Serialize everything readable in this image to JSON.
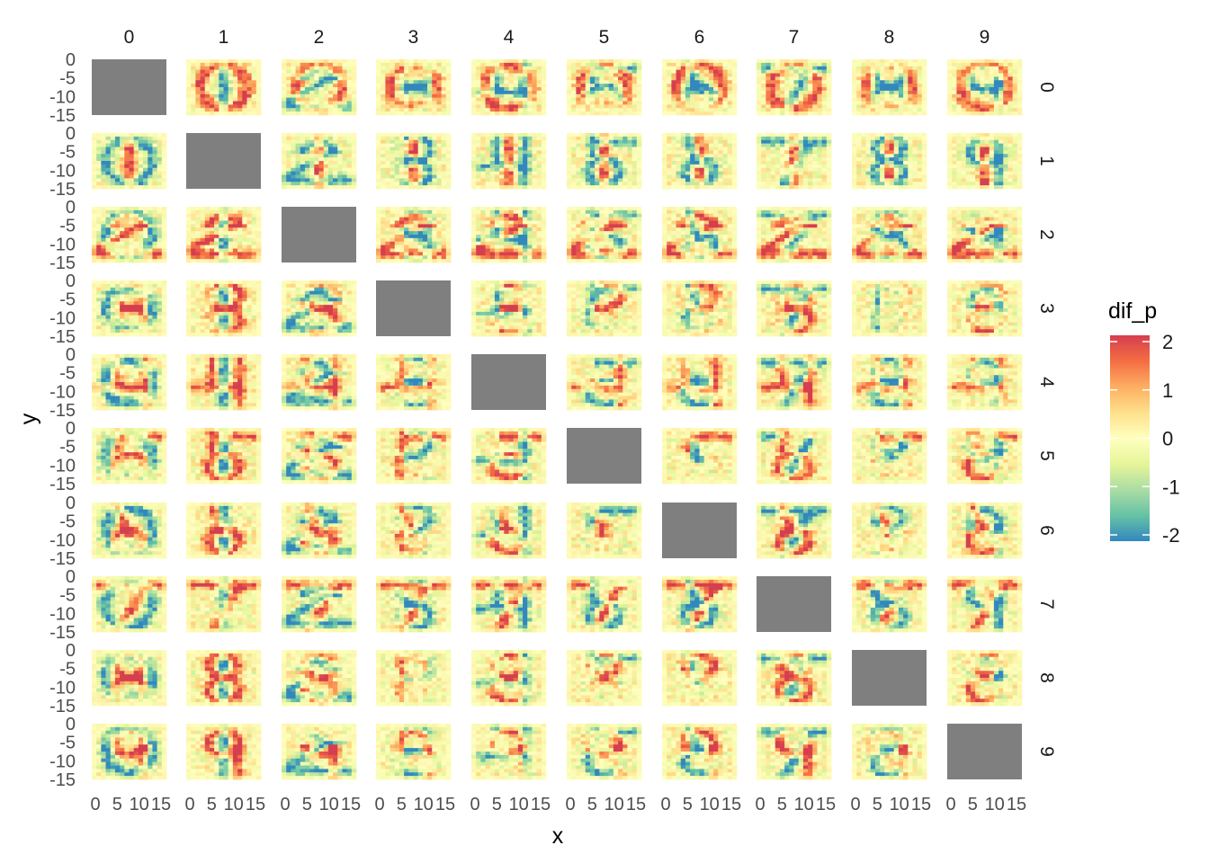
{
  "chart_data": {
    "type": "heatmap",
    "facet_cols": [
      "0",
      "1",
      "2",
      "3",
      "4",
      "5",
      "6",
      "7",
      "8",
      "9"
    ],
    "facet_rows": [
      "0",
      "1",
      "2",
      "3",
      "4",
      "5",
      "6",
      "7",
      "8",
      "9"
    ],
    "xlabel": "x",
    "ylabel": "y",
    "x_ticks": [
      0,
      5,
      10,
      15
    ],
    "x_tick_labels": [
      "0",
      "5",
      "10",
      "15"
    ],
    "y_ticks": [
      0,
      -5,
      -10,
      -15
    ],
    "y_tick_labels": [
      "0",
      "-5",
      "-10",
      "-15"
    ],
    "xlim": [
      0,
      15
    ],
    "ylim": [
      -15,
      0
    ],
    "grid_size": [
      16,
      16
    ],
    "value_name": "dif_p",
    "colorscale": "Spectral",
    "color_limits": [
      -2,
      2
    ],
    "colorbar_ticks": [
      "2",
      "1",
      "0",
      "-1",
      "-2"
    ],
    "colorbar_tick_values": [
      2,
      1,
      0,
      -1,
      -2
    ],
    "diagonal_fill": "#7f7f7f",
    "diagonal_note": "panels where row equals column contain no data",
    "legend_position": "right",
    "grid": true,
    "colors": {
      "high": "#d53e4f",
      "mid": "#ffffbf",
      "low": "#3288bd",
      "strip_text": "#1a1a1a",
      "tick_text": "#4d4d4d"
    }
  }
}
